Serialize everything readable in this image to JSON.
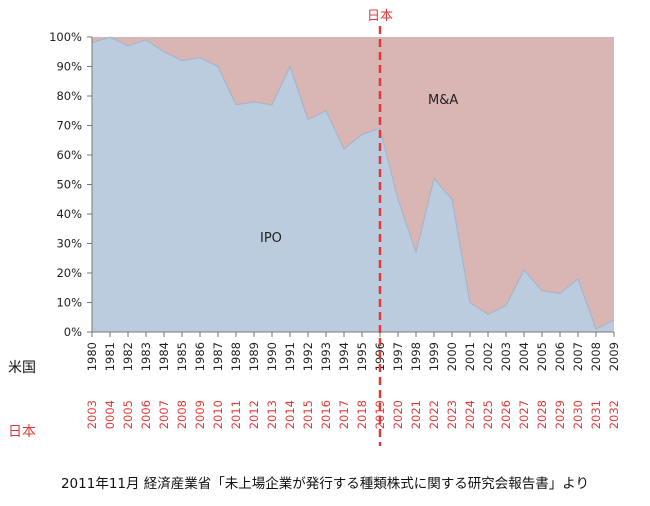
{
  "chart_data": {
    "type": "area",
    "stacked_percent": true,
    "y_ticks": [
      "0%",
      "10%",
      "20%",
      "30%",
      "40%",
      "50%",
      "60%",
      "70%",
      "80%",
      "90%",
      "100%"
    ],
    "ylim": [
      0,
      100
    ],
    "x_us": [
      "1980",
      "1981",
      "1982",
      "1983",
      "1984",
      "1985",
      "1986",
      "1987",
      "1988",
      "1989",
      "1990",
      "1991",
      "1992",
      "1993",
      "1994",
      "1995",
      "1996",
      "1997",
      "1998",
      "1999",
      "2000",
      "2001",
      "2002",
      "2003",
      "2004",
      "2005",
      "2006",
      "2007",
      "2008",
      "2009"
    ],
    "x_japan": [
      "2003",
      "0004",
      "2005",
      "2006",
      "2007",
      "2008",
      "2009",
      "2010",
      "2011",
      "2012",
      "2013",
      "2014",
      "2015",
      "2016",
      "2017",
      "2018",
      "2019",
      "2020",
      "2021",
      "2022",
      "2023",
      "2024",
      "2025",
      "2026",
      "2027",
      "2028",
      "2029",
      "2030",
      "2031",
      "2032"
    ],
    "row_label_us": "米国",
    "row_label_japan": "日本",
    "marker_label": "日本",
    "marker_at": "1996",
    "series": [
      {
        "name": "IPO",
        "color": "#bcccdf",
        "values": [
          98,
          100,
          97,
          99,
          95,
          92,
          93,
          90,
          77,
          78,
          77,
          90,
          72,
          75,
          62,
          67,
          69,
          45,
          27,
          52,
          45,
          10,
          6,
          9,
          21,
          14,
          13,
          18,
          1,
          4
        ]
      },
      {
        "name": "M&A",
        "color": "#d9b6b3",
        "values": [
          2,
          0,
          3,
          1,
          5,
          8,
          7,
          10,
          23,
          22,
          23,
          10,
          28,
          25,
          38,
          33,
          31,
          55,
          73,
          48,
          55,
          90,
          94,
          91,
          79,
          86,
          87,
          82,
          99,
          96
        ]
      }
    ],
    "area_labels": [
      {
        "text": "IPO",
        "series": "IPO"
      },
      {
        "text": "M&A",
        "series": "M&A"
      }
    ]
  },
  "caption": "2011年11月 経済産業省「未上場企業が発行する種類株式に関する研究会報告書」より"
}
